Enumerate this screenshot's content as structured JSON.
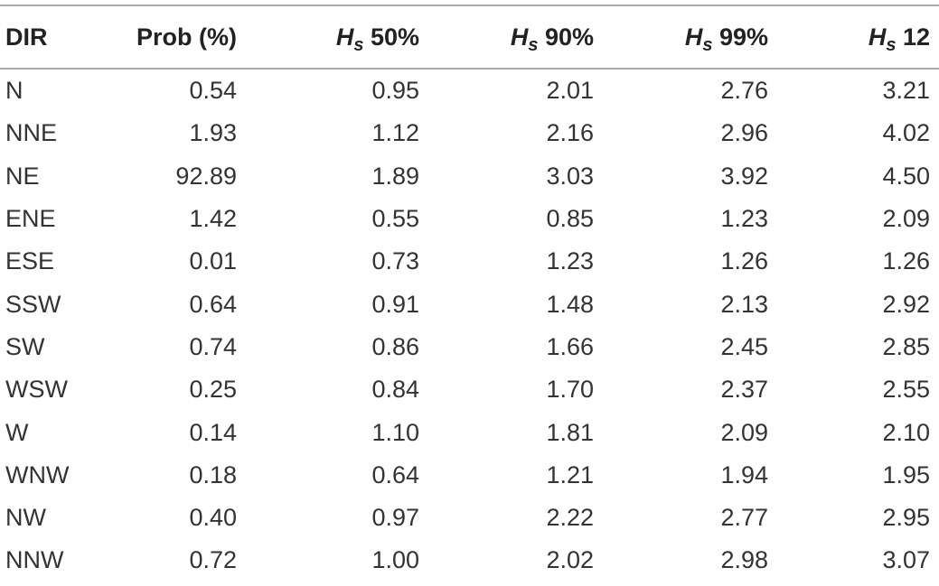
{
  "table": {
    "headers": {
      "dir": "DIR",
      "prob": "Prob (%)",
      "hs_symbol": "H",
      "hs_subscript": "s",
      "hs50": "50%",
      "hs90": "90%",
      "hs99": "99%",
      "hs12": "12"
    },
    "rows": [
      {
        "dir": "N",
        "prob": "0.54",
        "hs50": "0.95",
        "hs90": "2.01",
        "hs99": "2.76",
        "hs12": "3.21"
      },
      {
        "dir": "NNE",
        "prob": "1.93",
        "hs50": "1.12",
        "hs90": "2.16",
        "hs99": "2.96",
        "hs12": "4.02"
      },
      {
        "dir": "NE",
        "prob": "92.89",
        "hs50": "1.89",
        "hs90": "3.03",
        "hs99": "3.92",
        "hs12": "4.50"
      },
      {
        "dir": "ENE",
        "prob": "1.42",
        "hs50": "0.55",
        "hs90": "0.85",
        "hs99": "1.23",
        "hs12": "2.09"
      },
      {
        "dir": "ESE",
        "prob": "0.01",
        "hs50": "0.73",
        "hs90": "1.23",
        "hs99": "1.26",
        "hs12": "1.26"
      },
      {
        "dir": "SSW",
        "prob": "0.64",
        "hs50": "0.91",
        "hs90": "1.48",
        "hs99": "2.13",
        "hs12": "2.92"
      },
      {
        "dir": "SW",
        "prob": "0.74",
        "hs50": "0.86",
        "hs90": "1.66",
        "hs99": "2.45",
        "hs12": "2.85"
      },
      {
        "dir": "WSW",
        "prob": "0.25",
        "hs50": "0.84",
        "hs90": "1.70",
        "hs99": "2.37",
        "hs12": "2.55"
      },
      {
        "dir": "W",
        "prob": "0.14",
        "hs50": "1.10",
        "hs90": "1.81",
        "hs99": "2.09",
        "hs12": "2.10"
      },
      {
        "dir": "WNW",
        "prob": "0.18",
        "hs50": "0.64",
        "hs90": "1.21",
        "hs99": "1.94",
        "hs12": "1.95"
      },
      {
        "dir": "NW",
        "prob": "0.40",
        "hs50": "0.97",
        "hs90": "2.22",
        "hs99": "2.77",
        "hs12": "2.95"
      },
      {
        "dir": "NNW",
        "prob": "0.72",
        "hs50": "1.00",
        "hs90": "2.02",
        "hs99": "2.98",
        "hs12": "3.07"
      }
    ]
  }
}
